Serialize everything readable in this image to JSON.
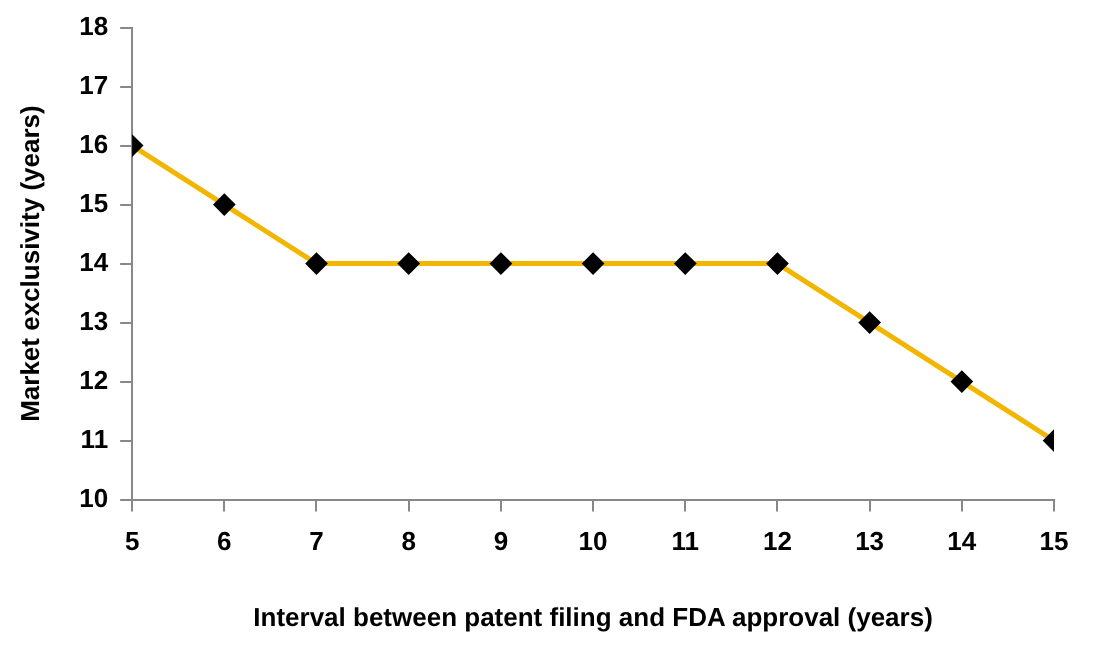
{
  "chart_data": {
    "type": "line",
    "xlabel": "Interval between patent filing and FDA approval (years)",
    "ylabel": "Market exclusivity (years)",
    "x": [
      5,
      6,
      7,
      8,
      9,
      10,
      11,
      12,
      13,
      14,
      15
    ],
    "series": [
      {
        "color": "#f2b600",
        "values": [
          16,
          15,
          14,
          14,
          14,
          14,
          14,
          14,
          13,
          12,
          11
        ]
      }
    ],
    "xlim": [
      5,
      15
    ],
    "xticks": [
      5,
      6,
      7,
      8,
      9,
      10,
      11,
      12,
      13,
      14,
      15
    ],
    "ylim": [
      10,
      18
    ],
    "yticks": [
      10,
      11,
      12,
      13,
      14,
      15,
      16,
      17,
      18
    ],
    "grid": false,
    "legend": false,
    "marker": "diamond",
    "line_style": "solid"
  }
}
